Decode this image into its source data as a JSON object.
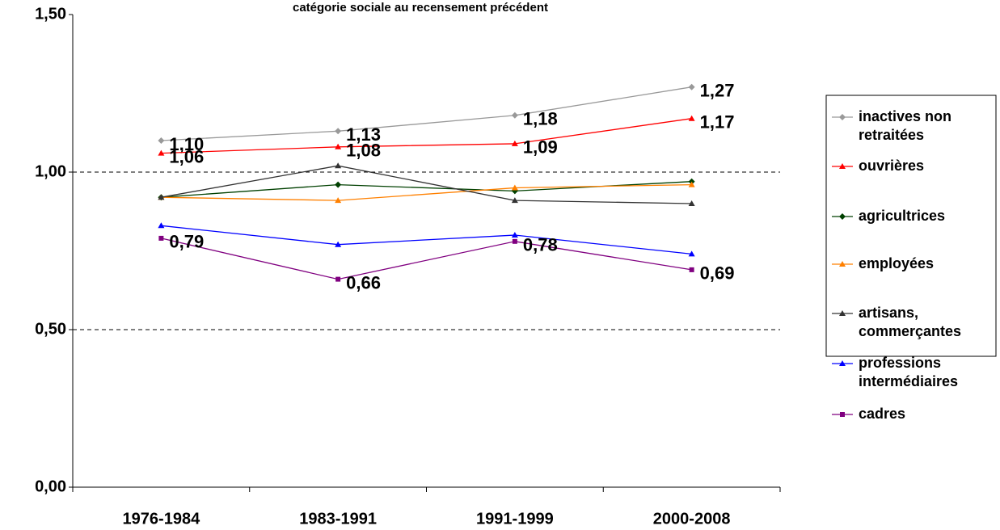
{
  "chart_data": {
    "type": "line",
    "title": "catégorie sociale au recensement précédent",
    "categories": [
      "1976-1984",
      "1983-1991",
      "1991-1999",
      "2000-2008"
    ],
    "ylim": [
      0,
      1.5
    ],
    "yticks": [
      {
        "value": 0,
        "label": "0,00"
      },
      {
        "value": 0.5,
        "label": "0,50"
      },
      {
        "value": 1,
        "label": "1,00"
      },
      {
        "value": 1.5,
        "label": "1,50"
      }
    ],
    "grid": true,
    "legend": "right",
    "series": [
      {
        "name": "inactives non retraitées",
        "color": "#999999",
        "marker": "diamond",
        "values": [
          1.1,
          1.13,
          1.18,
          1.27
        ],
        "value_labels": [
          "1,10",
          "1,13",
          "1,18",
          "1,27"
        ]
      },
      {
        "name": "ouvrières",
        "color": "#ff0000",
        "marker": "triangle",
        "values": [
          1.06,
          1.08,
          1.09,
          1.17
        ],
        "value_labels": [
          "1,06",
          "1,08",
          "1,09",
          "1,17"
        ]
      },
      {
        "name": "agricultrices",
        "color": "#004000",
        "marker": "diamond",
        "values": [
          0.92,
          0.96,
          0.94,
          0.97
        ]
      },
      {
        "name": "employées",
        "color": "#ff8000",
        "marker": "triangle",
        "values": [
          0.92,
          0.91,
          0.95,
          0.96
        ]
      },
      {
        "name": "artisans, commerçantes",
        "color": "#333333",
        "marker": "triangle",
        "values": [
          0.92,
          1.02,
          0.91,
          0.9
        ]
      },
      {
        "name": "professions intermédiaires",
        "color": "#0000ff",
        "marker": "triangle",
        "values": [
          0.83,
          0.77,
          0.8,
          0.74
        ]
      },
      {
        "name": "cadres",
        "color": "#800080",
        "marker": "square",
        "values": [
          0.79,
          0.66,
          0.78,
          0.69
        ],
        "value_labels": [
          "0,79",
          "0,66",
          "0,78",
          "0,69"
        ]
      }
    ]
  }
}
